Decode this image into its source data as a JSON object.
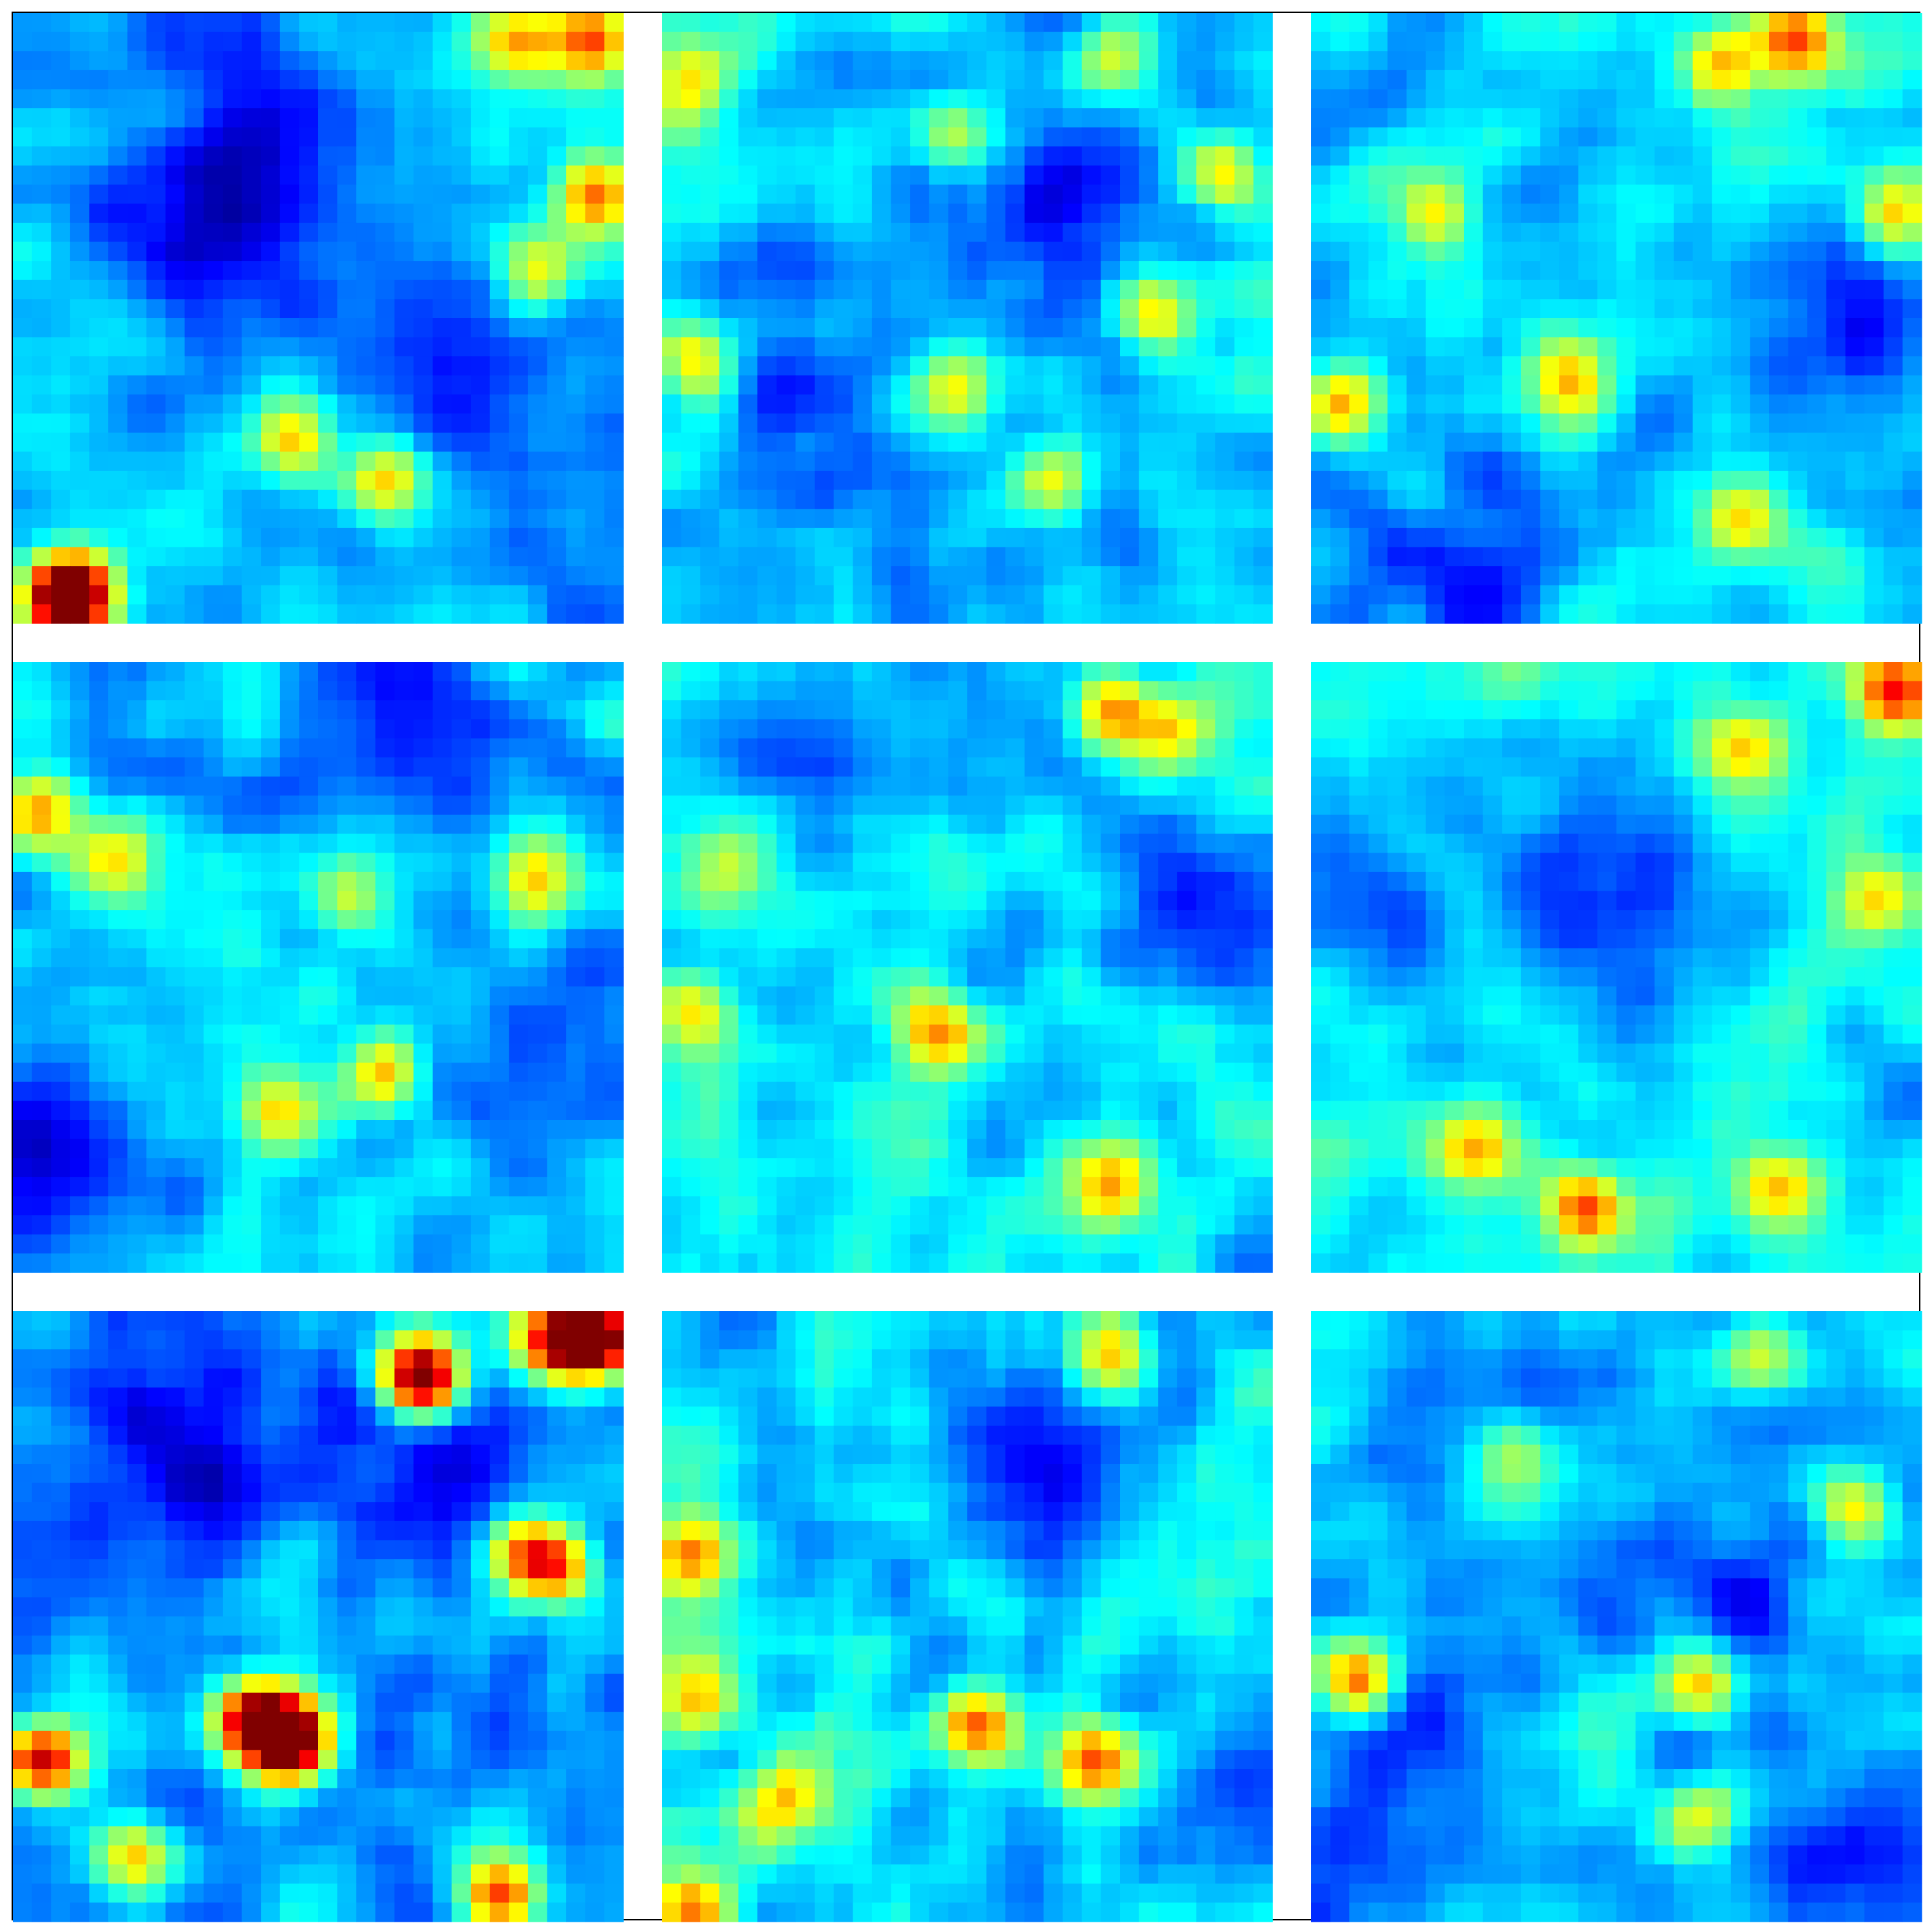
{
  "chart_data": {
    "type": "heatmap",
    "title": "",
    "xlabel": "",
    "ylabel": "",
    "colormap": "jet",
    "grid": false,
    "axes_ticks": false,
    "layout": {
      "rows": 3,
      "cols": 3
    },
    "cell_resolution": 32,
    "value_range": [
      0,
      1
    ],
    "panels": [
      {
        "row": 0,
        "col": 0,
        "hotspots": [
          [
            2,
            30,
            0.5
          ],
          [
            26,
            1,
            0.45
          ],
          [
            30,
            1,
            0.5
          ],
          [
            30,
            9,
            0.45
          ],
          [
            27,
            13,
            0.35
          ],
          [
            3,
            30,
            0.45
          ],
          [
            14,
            22,
            0.35
          ],
          [
            19,
            24,
            0.35
          ]
        ],
        "dark_regions": [
          [
            10,
            11,
            0.6
          ],
          [
            22,
            18,
            0.5
          ],
          [
            12,
            4,
            0.4
          ]
        ],
        "base": 0.16
      },
      {
        "row": 0,
        "col": 1,
        "hotspots": [
          [
            1,
            18,
            0.4
          ],
          [
            1,
            3,
            0.35
          ],
          [
            15,
            6,
            0.3
          ],
          [
            20,
            24,
            0.35
          ],
          [
            15,
            19,
            0.3
          ],
          [
            23,
            2,
            0.3
          ],
          [
            29,
            8,
            0.3
          ],
          [
            25,
            15,
            0.3
          ]
        ],
        "dark_regions": [
          [
            20,
            10,
            0.5
          ],
          [
            6,
            22,
            0.4
          ]
        ],
        "base": 0.18
      },
      {
        "row": 0,
        "col": 2,
        "hotspots": [
          [
            21,
            2,
            0.4
          ],
          [
            25,
            1,
            0.45
          ],
          [
            30,
            10,
            0.35
          ],
          [
            1,
            20,
            0.35
          ],
          [
            13,
            19,
            0.35
          ],
          [
            22,
            26,
            0.3
          ],
          [
            6,
            10,
            0.3
          ]
        ],
        "dark_regions": [
          [
            27,
            15,
            0.5
          ],
          [
            6,
            28,
            0.45
          ]
        ],
        "base": 0.18
      },
      {
        "row": 1,
        "col": 0,
        "hotspots": [
          [
            1,
            7,
            0.35
          ],
          [
            5,
            10,
            0.3
          ],
          [
            19,
            21,
            0.45
          ],
          [
            13,
            23,
            0.35
          ],
          [
            27,
            11,
            0.35
          ],
          [
            17,
            12,
            0.3
          ]
        ],
        "dark_regions": [
          [
            2,
            27,
            0.5
          ],
          [
            20,
            3,
            0.45
          ],
          [
            28,
            20,
            0.4
          ]
        ],
        "base": 0.16
      },
      {
        "row": 1,
        "col": 1,
        "hotspots": [
          [
            23,
            2,
            0.4
          ],
          [
            26,
            3,
            0.3
          ],
          [
            14,
            19,
            0.35
          ],
          [
            23,
            27,
            0.35
          ],
          [
            3,
            10,
            0.25
          ],
          [
            1,
            18,
            0.3
          ]
        ],
        "dark_regions": [
          [
            8,
            4,
            0.4
          ],
          [
            28,
            12,
            0.4
          ]
        ],
        "base": 0.2
      },
      {
        "row": 1,
        "col": 2,
        "hotspots": [
          [
            30,
            1,
            0.45
          ],
          [
            22,
            4,
            0.35
          ],
          [
            14,
            28,
            0.45
          ],
          [
            24,
            27,
            0.35
          ],
          [
            8,
            25,
            0.35
          ],
          [
            29,
            12,
            0.3
          ]
        ],
        "dark_regions": [
          [
            16,
            12,
            0.55
          ],
          [
            4,
            12,
            0.4
          ]
        ],
        "base": 0.2
      },
      {
        "row": 2,
        "col": 0,
        "hotspots": [
          [
            21,
            3,
            0.85
          ],
          [
            30,
            1,
            0.7
          ],
          [
            28,
            1,
            0.6
          ],
          [
            14,
            22,
            0.9
          ],
          [
            1,
            23,
            0.65
          ],
          [
            12,
            21,
            0.6
          ],
          [
            28,
            13,
            0.5
          ],
          [
            25,
            30,
            0.55
          ],
          [
            6,
            28,
            0.4
          ],
          [
            26,
            12,
            0.4
          ]
        ],
        "dark_regions": [
          [
            8,
            7,
            0.5
          ],
          [
            22,
            8,
            0.4
          ]
        ],
        "base": 0.14
      },
      {
        "row": 2,
        "col": 1,
        "hotspots": [
          [
            1,
            12,
            0.4
          ],
          [
            1,
            20,
            0.35
          ],
          [
            16,
            21,
            0.45
          ],
          [
            22,
            23,
            0.4
          ],
          [
            6,
            25,
            0.35
          ],
          [
            23,
            2,
            0.35
          ],
          [
            1,
            31,
            0.35
          ]
        ],
        "dark_regions": [
          [
            20,
            7,
            0.55
          ],
          [
            29,
            25,
            0.4
          ]
        ],
        "base": 0.2
      },
      {
        "row": 2,
        "col": 2,
        "hotspots": [
          [
            2,
            19,
            0.45
          ],
          [
            20,
            19,
            0.4
          ],
          [
            28,
            10,
            0.35
          ],
          [
            20,
            26,
            0.35
          ],
          [
            10,
            7,
            0.3
          ],
          [
            23,
            2,
            0.25
          ]
        ],
        "dark_regions": [
          [
            4,
            24,
            0.45
          ],
          [
            20,
            14,
            0.4
          ],
          [
            29,
            29,
            0.4
          ]
        ],
        "base": 0.17
      }
    ]
  }
}
